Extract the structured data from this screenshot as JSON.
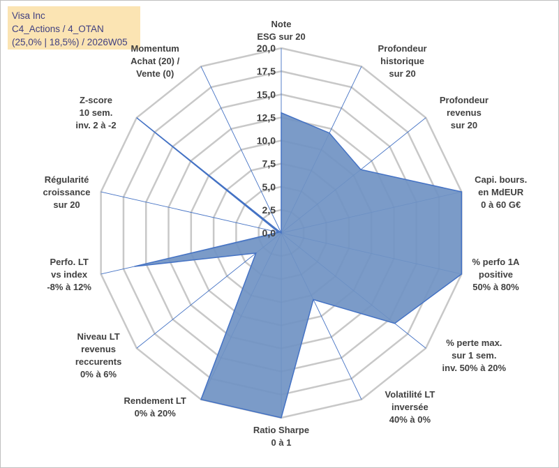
{
  "header": {
    "line1": "Visa Inc",
    "line2": "C4_Actions / 4_OTAN",
    "line3": "(25,0% | 18,5%) / 2026W05"
  },
  "chart_data": {
    "type": "radar",
    "ylim": [
      0,
      20
    ],
    "ticks": [
      "0,0",
      "2,5",
      "5,0",
      "7,5",
      "10,0",
      "12,5",
      "15,0",
      "17,5",
      "20,0"
    ],
    "axes": [
      {
        "label": [
          "Note",
          "ESG sur 20"
        ],
        "value": 13.0
      },
      {
        "label": [
          "Profondeur",
          "historique",
          "sur 20"
        ],
        "value": 12.0
      },
      {
        "label": [
          "Profondeur",
          "revenus",
          "sur 20"
        ],
        "value": 11.0
      },
      {
        "label": [
          "Capi. bours.",
          "en MdEUR",
          "0 à 60 G€"
        ],
        "value": 20.0
      },
      {
        "label": [
          "% perfo 1A",
          "positive",
          "50% à 80%"
        ],
        "value": 20.0
      },
      {
        "label": [
          "% perte max.",
          "sur 1 sem.",
          "inv. 50% à 20%"
        ],
        "value": 15.7
      },
      {
        "label": [
          "Volatilité LT",
          "inversée",
          "40% à 0%"
        ],
        "value": 8.0
      },
      {
        "label": [
          "Ratio Sharpe",
          "0 à 1"
        ],
        "value": 20.0
      },
      {
        "label": [
          "Rendement LT",
          "0% à 20%"
        ],
        "value": 20.0
      },
      {
        "label": [
          "Niveau LT",
          "revenus",
          "reccurents",
          "0% à 6%"
        ],
        "value": 3.5
      },
      {
        "label": [
          "Perfo. LT",
          "vs index",
          "-8% à 12%"
        ],
        "value": 16.3
      },
      {
        "label": [
          "Régularité",
          "croissance",
          "sur 20"
        ],
        "value": 0.3
      },
      {
        "label": [
          "Z-score",
          "10 sem.",
          "inv. 2 à -2"
        ],
        "value": 20.0
      },
      {
        "label": [
          "Momentum",
          "Achat (20) /",
          "Vente (0)"
        ],
        "value": 0.0
      }
    ],
    "colors": {
      "fill": "#7093c3",
      "stroke": "#4472c4",
      "grid": "#c8c8c8",
      "spoke": "#4472c4"
    }
  }
}
